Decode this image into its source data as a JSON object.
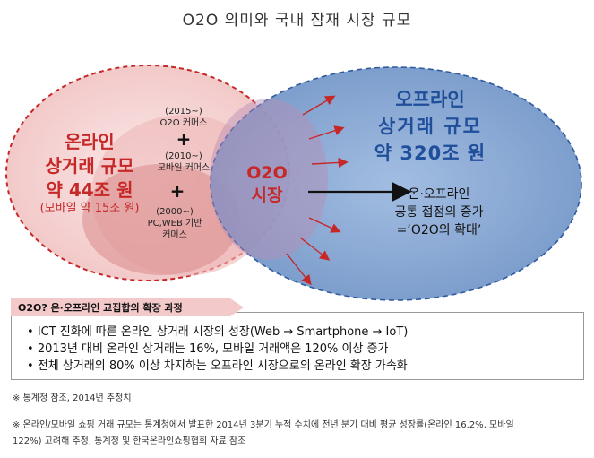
{
  "title": "O2O 의미와 국내 잠재 시장 규모",
  "online": {
    "label_line1": "온라인",
    "label_line2": "상거래 규모",
    "label_line3": "약 44조 원",
    "mobile_sub": "(모바일 약 15조 원)",
    "stage_2015": {
      "year": "(2015~)",
      "name": "O2O 커머스"
    },
    "stage_2010": {
      "year": "(2010~)",
      "name": "모바일 커머스"
    },
    "stage_2000": {
      "year": "(2000~)",
      "name_line1": "PC,WEB 기반",
      "name_line2": "커머스"
    },
    "plus": "+"
  },
  "o2o": {
    "line1": "O2O",
    "line2": "시장"
  },
  "offline": {
    "label_line1": "오프라인",
    "label_line2": "상거래 규모",
    "label_line3": "약 320조 원",
    "note_line1": "온·오프라인",
    "note_line2": "공통 접점의 증가",
    "note_line3": "=‘O2O의 확대’"
  },
  "box": {
    "title": "O2O? 온·오프라인 교집합의 확장 과정",
    "bullets": [
      "ICT 진화에 따른 온라인 상거래 시장의 성장(Web → Smartphone → IoT)",
      "2013년 대비 온라인 상거래는 16%, 모바일 거래액은 120% 이상 증가",
      "전체 상거래의 80% 이상 차지하는 오프라인 시장으로의 온라인 확장 가속화"
    ]
  },
  "notes": [
    "※ 통계청 참조, 2014년 추정치",
    "※ 온라인/모바일 쇼핑 거래 규모는 통계청에서 발표한 2014년 3분기 누적 수치에 전년 분기 대비 평균 성장률(온라인 16.2%, 모바일",
    "122%) 고려해 추정, 통계청 및 한국온라인쇼핑협회 자료 참조"
  ],
  "colors": {
    "red": "#c62828",
    "blue": "#1f4e9a",
    "blue_fill": "#7fa3d4",
    "pink_fill": "#f6d0d0"
  }
}
